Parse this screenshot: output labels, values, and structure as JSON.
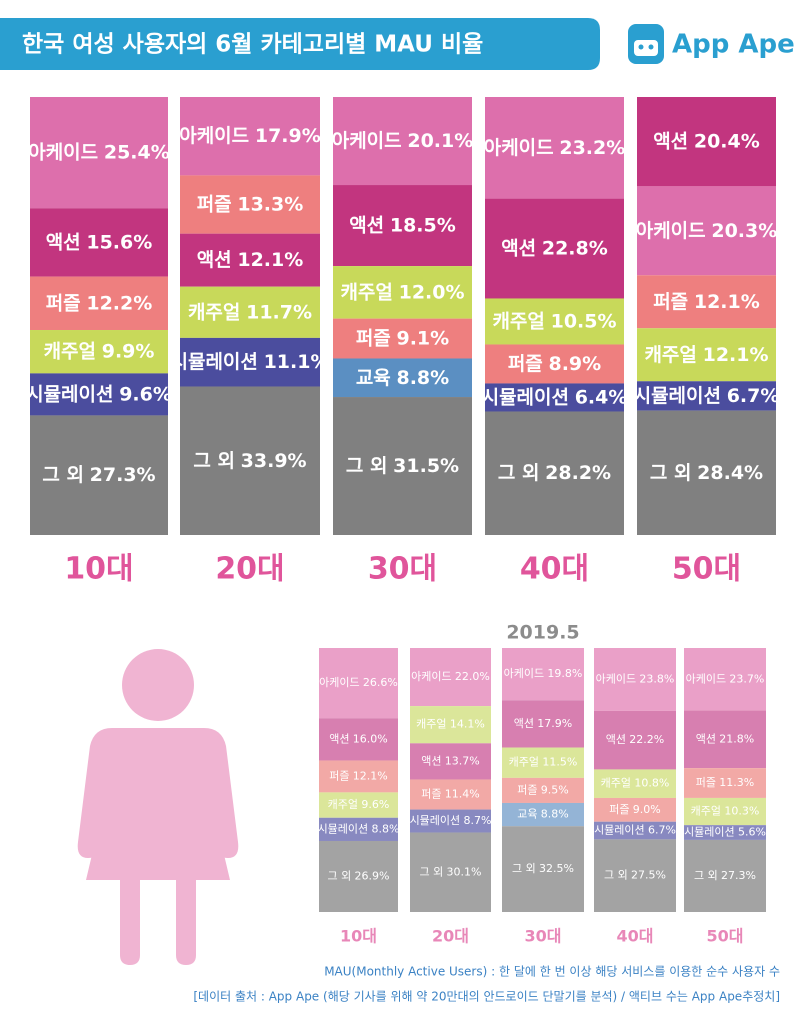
{
  "header": {
    "logo": "App Ape"
  },
  "footnotes": [
    "MAU(Monthly Active Users) : 한 달에 한 번 이상 해당 서비스를 이용한 순수 사용자 수",
    "[데이터 출처 : App Ape (해당 기사를 위해 약 20만대의 안드로이드 단말기를 분석) / 액티브 수는 App Ape추정치]"
  ],
  "chart_data": [
    {
      "type": "stacked_bar",
      "title": "한국 여성 사용자의 6월 카테고리별 MAU 비율",
      "ylim": [
        0,
        100
      ],
      "colors": {
        "아케이드": "#dd6fac",
        "액션": "#c2357f",
        "퍼즐": "#ee7f7f",
        "캐주얼": "#c8d95a",
        "시뮬레이션": "#4b4d9e",
        "교육": "#5b8fc2",
        "그 외": "#808080"
      },
      "bars": [
        {
          "category": "10대",
          "segments": [
            {
              "name": "아케이드",
              "value": 25.4,
              "value_label": "25.4%"
            },
            {
              "name": "액션",
              "value": 15.6,
              "value_label": "15.6%"
            },
            {
              "name": "퍼즐",
              "value": 12.2,
              "value_label": "12.2%"
            },
            {
              "name": "캐주얼",
              "value": 9.9,
              "value_label": "9.9%"
            },
            {
              "name": "시뮬레이션",
              "value": 9.6,
              "value_label": "9.6%"
            },
            {
              "name": "그 외",
              "value": 27.3,
              "value_label": "27.3%"
            }
          ]
        },
        {
          "category": "20대",
          "segments": [
            {
              "name": "아케이드",
              "value": 17.9,
              "value_label": "17.9%"
            },
            {
              "name": "퍼즐",
              "value": 13.3,
              "value_label": "13.3%"
            },
            {
              "name": "액션",
              "value": 12.1,
              "value_label": "12.1%"
            },
            {
              "name": "캐주얼",
              "value": 11.7,
              "value_label": "11.7%"
            },
            {
              "name": "시뮬레이션",
              "value": 11.1,
              "value_label": "11.1%"
            },
            {
              "name": "그 외",
              "value": 33.9,
              "value_label": "33.9%"
            }
          ]
        },
        {
          "category": "30대",
          "segments": [
            {
              "name": "아케이드",
              "value": 20.1,
              "value_label": "20.1%"
            },
            {
              "name": "액션",
              "value": 18.5,
              "value_label": "18.5%"
            },
            {
              "name": "캐주얼",
              "value": 12.0,
              "value_label": "12.0%"
            },
            {
              "name": "퍼즐",
              "value": 9.1,
              "value_label": "9.1%"
            },
            {
              "name": "교육",
              "value": 8.8,
              "value_label": "8.8%"
            },
            {
              "name": "그 외",
              "value": 31.5,
              "value_label": "31.5%"
            }
          ]
        },
        {
          "category": "40대",
          "segments": [
            {
              "name": "아케이드",
              "value": 23.2,
              "value_label": "23.2%"
            },
            {
              "name": "액션",
              "value": 22.8,
              "value_label": "22.8%"
            },
            {
              "name": "캐주얼",
              "value": 10.5,
              "value_label": "10.5%"
            },
            {
              "name": "퍼즐",
              "value": 8.9,
              "value_label": "8.9%"
            },
            {
              "name": "시뮬레이션",
              "value": 6.4,
              "value_label": "6.4%"
            },
            {
              "name": "그 외",
              "value": 28.2,
              "value_label": "28.2%"
            }
          ]
        },
        {
          "category": "50대",
          "segments": [
            {
              "name": "액션",
              "value": 20.4,
              "value_label": "20.4%"
            },
            {
              "name": "아케이드",
              "value": 20.3,
              "value_label": "20.3%"
            },
            {
              "name": "퍼즐",
              "value": 12.1,
              "value_label": "12.1%"
            },
            {
              "name": "캐주얼",
              "value": 12.1,
              "value_label": "12.1%"
            },
            {
              "name": "시뮬레이션",
              "value": 6.7,
              "value_label": "6.7%"
            },
            {
              "name": "그 외",
              "value": 28.4,
              "value_label": "28.4%"
            }
          ]
        }
      ]
    },
    {
      "type": "stacked_bar",
      "title": "2019.5",
      "ylim": [
        0,
        100
      ],
      "colors": {
        "아케이드": "#eaa0c8",
        "액션": "#d77fb0",
        "퍼즐": "#f2a9a6",
        "캐주얼": "#dbe69a",
        "시뮬레이션": "#8889c0",
        "교육": "#94b4d6",
        "그 외": "#a3a3a3"
      },
      "bars": [
        {
          "category": "10대",
          "segments": [
            {
              "name": "아케이드",
              "value": 26.6,
              "value_label": "26.6%"
            },
            {
              "name": "액션",
              "value": 16.0,
              "value_label": "16.0%"
            },
            {
              "name": "퍼즐",
              "value": 12.1,
              "value_label": "12.1%"
            },
            {
              "name": "캐주얼",
              "value": 9.6,
              "value_label": "9.6%"
            },
            {
              "name": "시뮬레이션",
              "value": 8.8,
              "value_label": "8.8%"
            },
            {
              "name": "그 외",
              "value": 26.9,
              "value_label": "26.9%"
            }
          ]
        },
        {
          "category": "20대",
          "segments": [
            {
              "name": "아케이드",
              "value": 22.0,
              "value_label": "22.0%"
            },
            {
              "name": "캐주얼",
              "value": 14.1,
              "value_label": "14.1%"
            },
            {
              "name": "액션",
              "value": 13.7,
              "value_label": "13.7%"
            },
            {
              "name": "퍼즐",
              "value": 11.4,
              "value_label": "11.4%"
            },
            {
              "name": "시뮬레이션",
              "value": 8.7,
              "value_label": "8.7%"
            },
            {
              "name": "그 외",
              "value": 30.1,
              "value_label": "30.1%"
            }
          ]
        },
        {
          "category": "30대",
          "segments": [
            {
              "name": "아케이드",
              "value": 19.8,
              "value_label": "19.8%"
            },
            {
              "name": "액션",
              "value": 17.9,
              "value_label": "17.9%"
            },
            {
              "name": "캐주얼",
              "value": 11.5,
              "value_label": "11.5%"
            },
            {
              "name": "퍼즐",
              "value": 9.5,
              "value_label": "9.5%"
            },
            {
              "name": "교육",
              "value": 8.8,
              "value_label": "8.8%"
            },
            {
              "name": "그 외",
              "value": 32.5,
              "value_label": "32.5%"
            }
          ]
        },
        {
          "category": "40대",
          "segments": [
            {
              "name": "아케이드",
              "value": 23.8,
              "value_label": "23.8%"
            },
            {
              "name": "액션",
              "value": 22.2,
              "value_label": "22.2%"
            },
            {
              "name": "캐주얼",
              "value": 10.8,
              "value_label": "10.8%"
            },
            {
              "name": "퍼즐",
              "value": 9.0,
              "value_label": "9.0%"
            },
            {
              "name": "시뮬레이션",
              "value": 6.7,
              "value_label": "6.7%"
            },
            {
              "name": "그 외",
              "value": 27.5,
              "value_label": "27.5%"
            }
          ]
        },
        {
          "category": "50대",
          "segments": [
            {
              "name": "아케이드",
              "value": 23.7,
              "value_label": "23.7%"
            },
            {
              "name": "액션",
              "value": 21.8,
              "value_label": "21.8%"
            },
            {
              "name": "퍼즐",
              "value": 11.3,
              "value_label": "11.3%"
            },
            {
              "name": "캐주얼",
              "value": 10.3,
              "value_label": "10.3%"
            },
            {
              "name": "시뮬레이션",
              "value": 5.6,
              "value_label": "5.6%"
            },
            {
              "name": "그 외",
              "value": 27.3,
              "value_label": "27.3%"
            }
          ]
        }
      ]
    }
  ]
}
